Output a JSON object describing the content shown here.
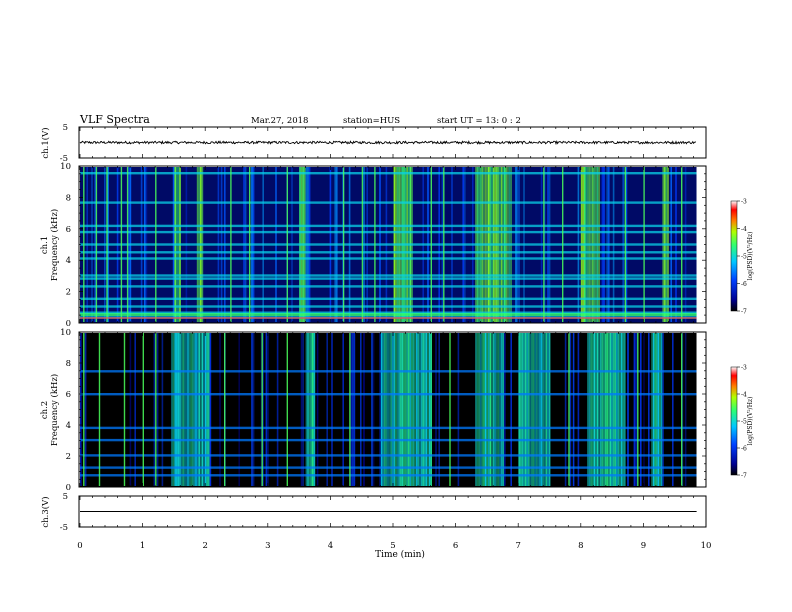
{
  "header": {
    "title": "VLF Spectra",
    "date": "Mar.27, 2018",
    "station": "station=HUS",
    "start": "start  UT =  13: 0  : 2"
  },
  "chart_data": [
    {
      "type": "line",
      "panel": "ch1-waveform",
      "ylabel": "ch.1(V)",
      "ylim": [
        -5,
        5
      ],
      "yticks": [
        "5",
        "-5"
      ],
      "xlim": [
        0,
        10
      ],
      "data_span_min": [
        0,
        9.85
      ],
      "baseline_v": 0,
      "noise_amplitude_v": 0.4
    },
    {
      "type": "heatmap",
      "panel": "ch1-spectrogram",
      "ylabel": "Frequency (kHz)",
      "ylabel_prefix": "ch.1",
      "ylim": [
        0,
        10
      ],
      "yticks": [
        "0",
        "2",
        "4",
        "6",
        "8",
        "10"
      ],
      "xlim": [
        0,
        10
      ],
      "data_span_min": [
        0,
        9.85
      ],
      "colorbar": {
        "label": "log(PSD)(V²/Hz)",
        "ticks": [
          "-3",
          "-4",
          "-5",
          "-6",
          "-7"
        ],
        "range": [
          -7,
          -3
        ]
      },
      "background_log_psd": -6.3,
      "horizontal_lines_khz": [
        0.3,
        0.6,
        1.0,
        1.5,
        2.3,
        2.8,
        3.0,
        4.1,
        4.5,
        5.0,
        5.8,
        6.2,
        7.7,
        9.6
      ],
      "bright_bursts_min": [
        [
          1.5,
          1.6
        ],
        [
          1.85,
          1.95
        ],
        [
          3.5,
          3.6
        ],
        [
          5.0,
          5.3
        ],
        [
          6.3,
          6.9
        ],
        [
          8.0,
          8.3
        ],
        [
          9.3,
          9.4
        ]
      ],
      "thin_spikes_min": [
        0.05,
        0.25,
        0.42,
        0.65,
        0.75,
        1.2,
        2.4,
        2.7,
        3.3,
        4.2,
        4.5,
        4.7,
        5.6,
        5.8,
        7.4,
        7.7,
        8.7,
        9.0,
        9.6
      ]
    },
    {
      "type": "heatmap",
      "panel": "ch2-spectrogram",
      "ylabel": "Frequency (kHz)",
      "ylabel_prefix": "ch.2",
      "ylim": [
        0,
        10
      ],
      "yticks": [
        "0",
        "2",
        "4",
        "6",
        "8",
        "10"
      ],
      "xlim": [
        0,
        10
      ],
      "data_span_min": [
        0,
        9.85
      ],
      "colorbar": {
        "label": "log(PSD)(V²/Hz)",
        "ticks": [
          "-3",
          "-4",
          "-5",
          "-6",
          "-7"
        ],
        "range": [
          -7,
          -3
        ]
      },
      "background_log_psd": -6.8,
      "horizontal_lines_khz": [
        0.7,
        1.2,
        2.0,
        3.0,
        3.8,
        6.0,
        7.5
      ],
      "bright_bursts_min": [
        [
          1.45,
          2.05
        ],
        [
          3.6,
          3.75
        ],
        [
          4.8,
          5.6
        ],
        [
          6.3,
          6.75
        ],
        [
          7.0,
          7.5
        ],
        [
          8.1,
          8.7
        ],
        [
          9.1,
          9.3
        ]
      ],
      "thin_spikes_min": [
        0.05,
        0.3,
        0.7,
        1.0,
        1.2,
        2.3,
        2.9,
        3.3,
        4.3,
        5.9,
        7.8,
        8.9,
        9.6
      ]
    },
    {
      "type": "line",
      "panel": "ch3-waveform",
      "ylabel": "ch.3(V)",
      "ylim": [
        -5,
        5
      ],
      "yticks": [
        "5",
        "-5"
      ],
      "xlim": [
        0,
        10
      ],
      "data_span_min": [
        0,
        9.85
      ],
      "baseline_v": 0,
      "noise_amplitude_v": 0
    }
  ],
  "xaxis": {
    "label": "Time (min)",
    "ticks": [
      "0",
      "1",
      "2",
      "3",
      "4",
      "5",
      "6",
      "7",
      "8",
      "9",
      "10"
    ]
  }
}
